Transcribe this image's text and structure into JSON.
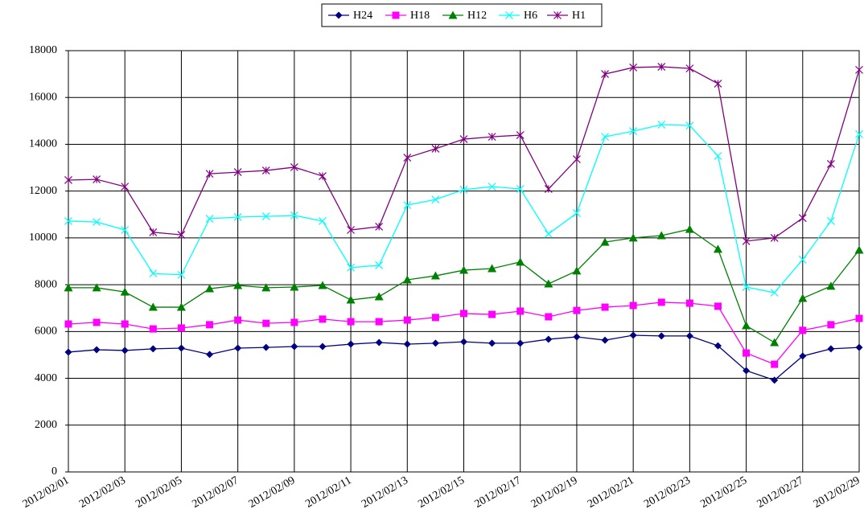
{
  "chart_data": {
    "type": "line",
    "categories": [
      "2012/02/01",
      null,
      "2012/02/03",
      null,
      "2012/02/05",
      null,
      "2012/02/07",
      null,
      "2012/02/09",
      null,
      "2012/02/11",
      null,
      "2012/02/13",
      null,
      "2012/02/15",
      null,
      "2012/02/17",
      null,
      "2012/02/19",
      null,
      "2012/02/21",
      null,
      "2012/02/23",
      null,
      "2012/02/25",
      null,
      "2012/02/27",
      null,
      "2012/02/29"
    ],
    "ylim": [
      0,
      18000
    ],
    "yticks": [
      0,
      2000,
      4000,
      6000,
      8000,
      10000,
      12000,
      14000,
      16000,
      18000
    ],
    "grid": true,
    "legend": "top",
    "series": [
      {
        "name": "H24",
        "color": "#000080",
        "marker": "diamond",
        "values": [
          5120,
          5220,
          5190,
          5260,
          5290,
          5020,
          5290,
          5320,
          5360,
          5360,
          5460,
          5530,
          5460,
          5500,
          5560,
          5500,
          5500,
          5670,
          5770,
          5630,
          5840,
          5810,
          5810,
          5390,
          4330,
          3920,
          4950,
          5260,
          5320
        ]
      },
      {
        "name": "H18",
        "color": "#ff00ff",
        "marker": "square",
        "values": [
          6320,
          6390,
          6320,
          6110,
          6150,
          6290,
          6490,
          6350,
          6390,
          6530,
          6420,
          6420,
          6490,
          6600,
          6770,
          6730,
          6870,
          6630,
          6900,
          7040,
          7110,
          7250,
          7210,
          7080,
          5080,
          4600,
          6050,
          6290,
          6560
        ]
      },
      {
        "name": "H12",
        "color": "#008000",
        "marker": "triangle",
        "values": [
          7870,
          7870,
          7690,
          7040,
          7040,
          7830,
          7970,
          7870,
          7900,
          7970,
          7350,
          7490,
          8210,
          8380,
          8620,
          8690,
          8970,
          8040,
          8590,
          9820,
          10000,
          10100,
          10370,
          9520,
          6250,
          5530,
          7420,
          7940,
          9480
        ]
      },
      {
        "name": "H6",
        "color": "#00ffff",
        "marker": "x",
        "values": [
          10720,
          10680,
          10340,
          8480,
          8420,
          10820,
          10890,
          10920,
          10960,
          10720,
          8730,
          8830,
          11400,
          11640,
          12060,
          12190,
          12090,
          10170,
          11060,
          14320,
          14560,
          14840,
          14800,
          13500,
          7900,
          7660,
          9070,
          10720,
          14430
        ]
      },
      {
        "name": "H1",
        "color": "#800080",
        "marker": "star",
        "values": [
          12470,
          12500,
          12190,
          10240,
          10130,
          12740,
          12810,
          12880,
          13020,
          12640,
          10340,
          10480,
          13430,
          13810,
          14220,
          14320,
          14390,
          12090,
          13360,
          17000,
          17280,
          17310,
          17240,
          16590,
          9860,
          10000,
          10850,
          13160,
          17180
        ]
      }
    ]
  }
}
